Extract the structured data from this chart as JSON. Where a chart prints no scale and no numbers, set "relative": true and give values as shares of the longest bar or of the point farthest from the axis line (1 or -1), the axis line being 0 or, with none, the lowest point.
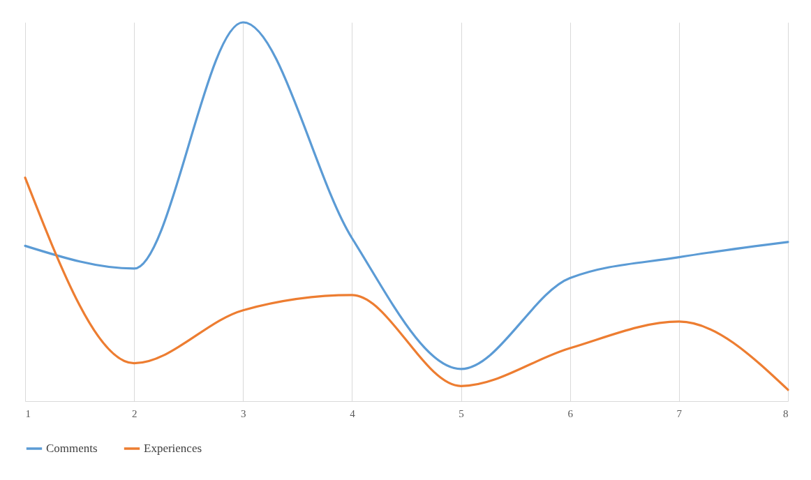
{
  "chart_data": {
    "type": "line",
    "relative": true,
    "x": [
      1,
      2,
      3,
      4,
      5,
      6,
      7,
      8
    ],
    "xlim": [
      1,
      8
    ],
    "xticks": [
      1,
      2,
      3,
      4,
      5,
      6,
      7,
      8
    ],
    "grid": "x",
    "legend": "bottom",
    "line_style": "solid",
    "series": [
      {
        "name": "Comments",
        "color": "#5b9bd5",
        "values": [
          0.41,
          0.35,
          1,
          0.43,
          0.085,
          0.325,
          0.38,
          0.42
        ]
      },
      {
        "name": "Experiences",
        "color": "#ed7d31",
        "values": [
          0.59,
          0.1,
          0.24,
          0.28,
          0.04,
          0.14,
          0.21,
          0.03
        ]
      }
    ]
  }
}
